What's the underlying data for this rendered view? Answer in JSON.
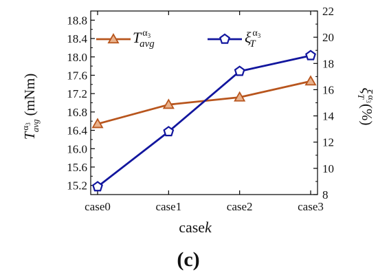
{
  "figure_label": "(c)",
  "chart_data": {
    "type": "line",
    "categories": [
      "case0",
      "case1",
      "case2",
      "case3"
    ],
    "xlabel": {
      "base": "case",
      "italic": "k"
    },
    "left_axis": {
      "label_main": "T",
      "label_sup": "α",
      "label_sup_sub": "3",
      "label_sub": "avg",
      "label_unit": "(mNm)",
      "ylim": [
        15.0,
        19.0
      ],
      "ticks": [
        "15.2",
        "15.6",
        "16.0",
        "16.4",
        "16.8",
        "17.2",
        "17.6",
        "18.0",
        "18.4",
        "18.8"
      ]
    },
    "right_axis": {
      "label_main": "ξ",
      "label_sup": "α",
      "label_sup_sub": "3",
      "label_sub": "T",
      "label_unit": "(%)",
      "ylim": [
        8,
        22
      ],
      "ticks": [
        "8",
        "10",
        "12",
        "14",
        "16",
        "18",
        "20",
        "22"
      ]
    },
    "series": [
      {
        "name_main": "T",
        "name_sup": "α",
        "name_sup_sub": "3",
        "name_sub": "avg",
        "axis": "left",
        "marker": "triangle",
        "color": "#b8551d",
        "values": [
          16.54,
          16.96,
          17.12,
          17.47
        ]
      },
      {
        "name_main": "ξ",
        "name_sup": "α",
        "name_sup_sub": "3",
        "name_sub": "T",
        "axis": "right",
        "marker": "pentagon",
        "color": "#12169e",
        "values": [
          8.6,
          12.8,
          17.4,
          18.6
        ]
      }
    ],
    "legend_position": "top",
    "grid": false
  }
}
